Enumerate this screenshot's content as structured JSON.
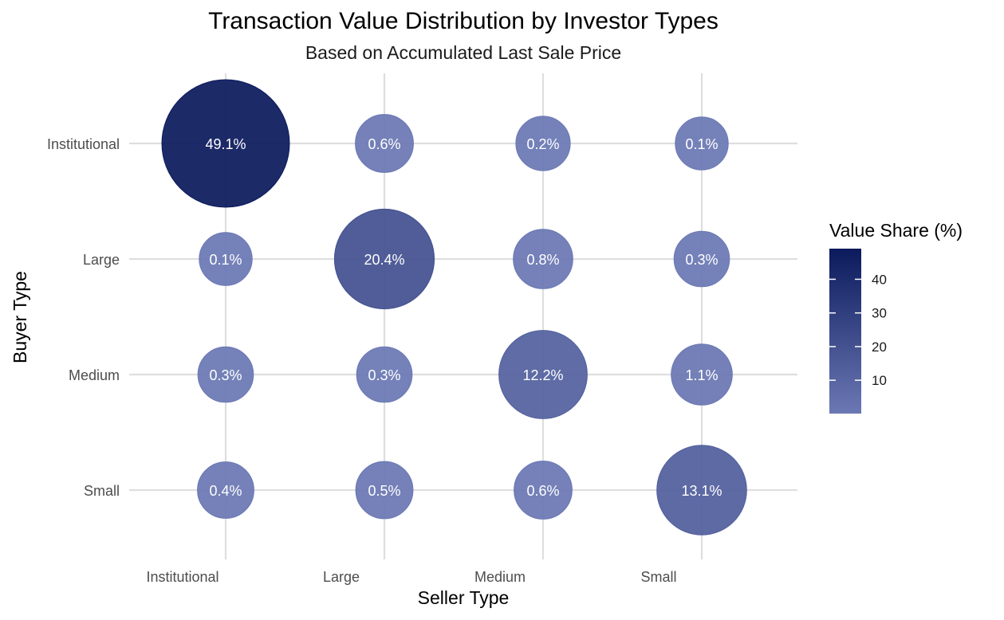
{
  "chart_data": {
    "type": "scatter",
    "title": "Transaction Value Distribution by Investor Types",
    "subtitle": "Based on Accumulated Last Sale Price",
    "xlabel": "Seller Type",
    "ylabel": "Buyer Type",
    "x_categories": [
      "Institutional",
      "Large",
      "Medium",
      "Small"
    ],
    "y_categories": [
      "Institutional",
      "Large",
      "Medium",
      "Small"
    ],
    "legend_title": "Value Share (%)",
    "legend_ticks": [
      "10",
      "20",
      "30",
      "40"
    ],
    "legend_tick_values": [
      10,
      20,
      30,
      40
    ],
    "color_range": [
      0.1,
      49.1
    ],
    "color_low": "#6b78b4",
    "color_high": "#0b1a5c",
    "legend_position": "right",
    "grid": true,
    "points": [
      {
        "seller": "Institutional",
        "buyer": "Institutional",
        "value": 49.1,
        "label": "49.1%"
      },
      {
        "seller": "Large",
        "buyer": "Institutional",
        "value": 0.6,
        "label": "0.6%"
      },
      {
        "seller": "Medium",
        "buyer": "Institutional",
        "value": 0.2,
        "label": "0.2%"
      },
      {
        "seller": "Small",
        "buyer": "Institutional",
        "value": 0.1,
        "label": "0.1%"
      },
      {
        "seller": "Institutional",
        "buyer": "Large",
        "value": 0.1,
        "label": "0.1%"
      },
      {
        "seller": "Large",
        "buyer": "Large",
        "value": 20.4,
        "label": "20.4%"
      },
      {
        "seller": "Medium",
        "buyer": "Large",
        "value": 0.8,
        "label": "0.8%"
      },
      {
        "seller": "Small",
        "buyer": "Large",
        "value": 0.3,
        "label": "0.3%"
      },
      {
        "seller": "Institutional",
        "buyer": "Medium",
        "value": 0.3,
        "label": "0.3%"
      },
      {
        "seller": "Large",
        "buyer": "Medium",
        "value": 0.3,
        "label": "0.3%"
      },
      {
        "seller": "Medium",
        "buyer": "Medium",
        "value": 12.2,
        "label": "12.2%"
      },
      {
        "seller": "Small",
        "buyer": "Medium",
        "value": 1.1,
        "label": "1.1%"
      },
      {
        "seller": "Institutional",
        "buyer": "Small",
        "value": 0.4,
        "label": "0.4%"
      },
      {
        "seller": "Large",
        "buyer": "Small",
        "value": 0.5,
        "label": "0.5%"
      },
      {
        "seller": "Medium",
        "buyer": "Small",
        "value": 0.6,
        "label": "0.6%"
      },
      {
        "seller": "Small",
        "buyer": "Small",
        "value": 13.1,
        "label": "13.1%"
      }
    ]
  }
}
